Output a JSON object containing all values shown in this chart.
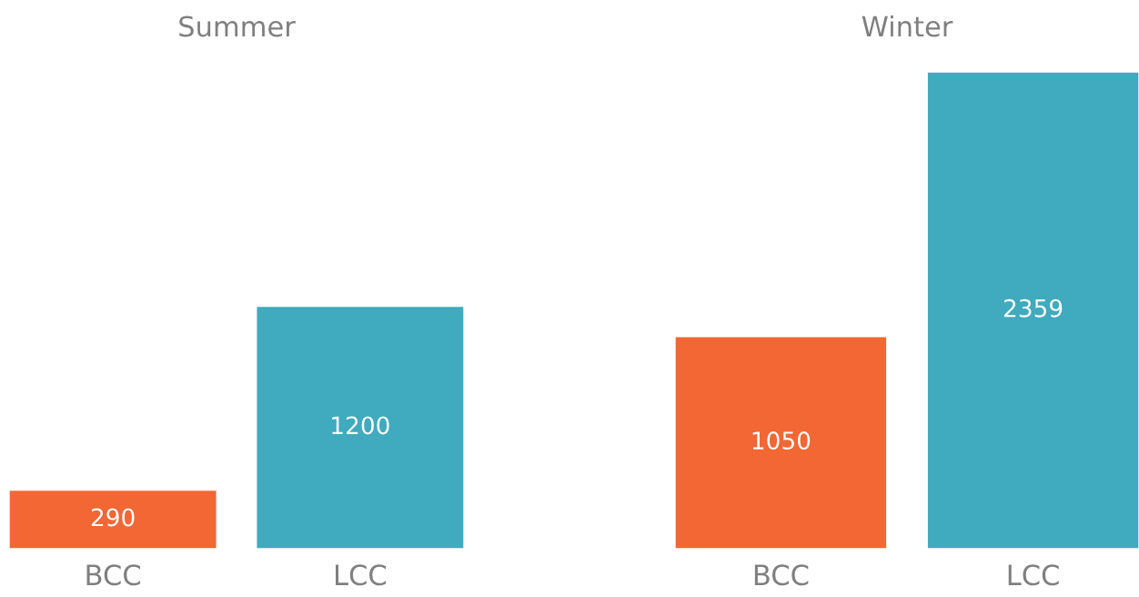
{
  "chart_data": [
    {
      "type": "bar",
      "title": "Summer",
      "categories": [
        "BCC",
        "LCC"
      ],
      "values": [
        290,
        1200
      ],
      "colors": [
        "#f26733",
        "#40aabe"
      ],
      "data_labels": true,
      "tick_labels": "x"
    },
    {
      "type": "bar",
      "title": "Winter",
      "categories": [
        "BCC",
        "LCC"
      ],
      "values": [
        1050,
        2359
      ],
      "colors": [
        "#f26733",
        "#40aabe"
      ],
      "data_labels": true,
      "tick_labels": "x"
    }
  ]
}
